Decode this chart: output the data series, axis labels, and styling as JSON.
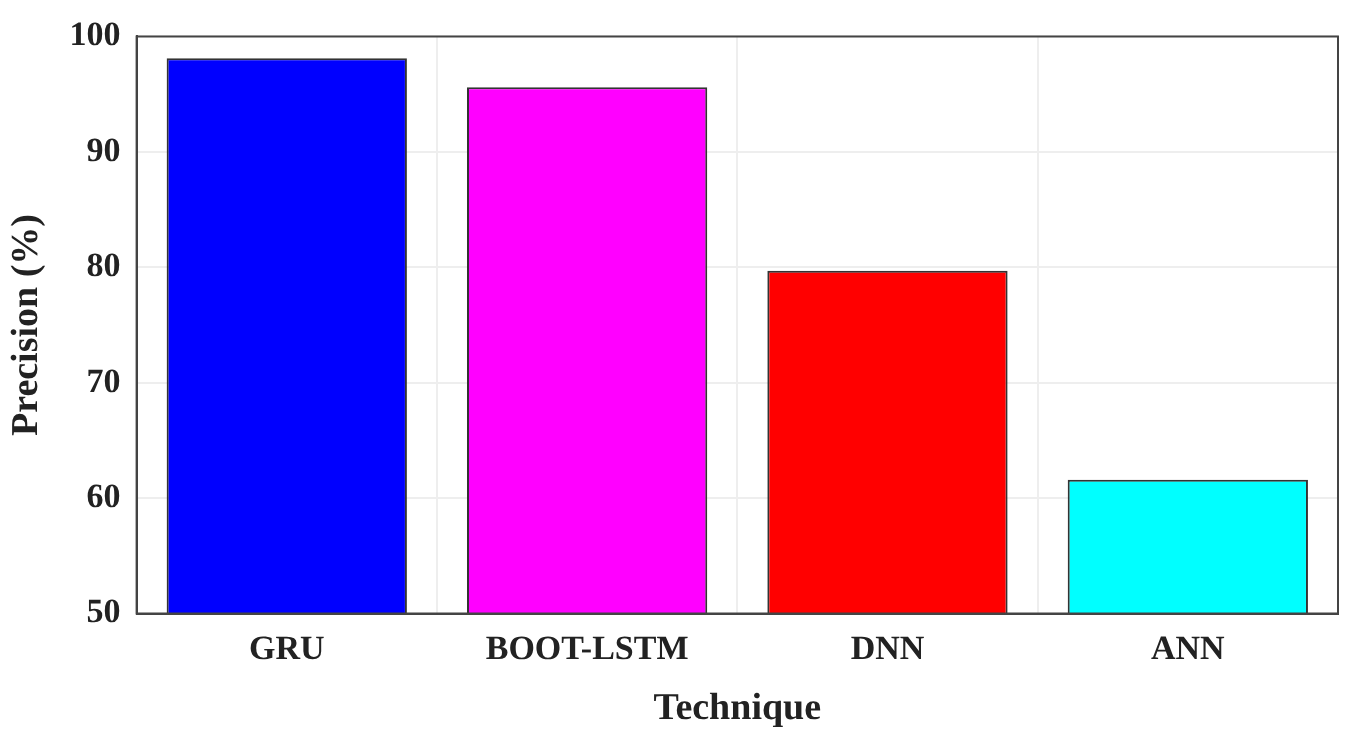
{
  "chart_data": {
    "type": "bar",
    "xlabel": "Technique",
    "ylabel": "Precision (%)",
    "categories": [
      "GRU",
      "BOOT-LSTM",
      "DNN",
      "ANN"
    ],
    "values": [
      98.1,
      95.6,
      79.7,
      61.6
    ],
    "colors": [
      "#0000ff",
      "#ff00ff",
      "#ff0000",
      "#00ffff"
    ],
    "ylim": [
      50,
      100
    ],
    "yticks": [
      50,
      60,
      70,
      80,
      90,
      100
    ],
    "grid": true
  }
}
